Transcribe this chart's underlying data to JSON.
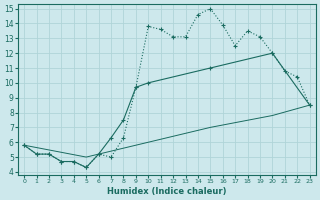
{
  "xlabel": "Humidex (Indice chaleur)",
  "bg_color": "#cde8ec",
  "grid_color": "#b0d4d8",
  "line_color": "#1a6b60",
  "xlim": [
    -0.5,
    23.5
  ],
  "ylim": [
    3.8,
    15.3
  ],
  "xticks": [
    0,
    1,
    2,
    3,
    4,
    5,
    6,
    7,
    8,
    9,
    10,
    11,
    12,
    13,
    14,
    15,
    16,
    17,
    18,
    19,
    20,
    21,
    22,
    23
  ],
  "yticks": [
    4,
    5,
    6,
    7,
    8,
    9,
    10,
    11,
    12,
    13,
    14,
    15
  ],
  "line1_x": [
    0,
    1,
    2,
    3,
    4,
    5,
    6,
    7,
    8,
    9,
    10,
    11,
    12,
    13,
    14,
    15,
    16,
    17,
    18,
    19,
    20,
    21,
    22,
    23
  ],
  "line1_y": [
    5.8,
    5.2,
    5.2,
    4.7,
    4.7,
    4.3,
    5.2,
    5.0,
    6.3,
    9.7,
    13.8,
    13.6,
    13.1,
    13.1,
    14.6,
    15.0,
    13.9,
    12.5,
    13.5,
    13.1,
    12.0,
    10.8,
    10.4,
    8.5
  ],
  "line2_x": [
    0,
    1,
    2,
    3,
    4,
    5,
    6,
    7,
    8,
    9,
    10,
    15,
    20,
    23
  ],
  "line2_y": [
    5.8,
    5.2,
    5.2,
    4.7,
    4.7,
    4.3,
    5.2,
    6.3,
    7.5,
    9.7,
    10.0,
    11.0,
    12.0,
    8.5
  ],
  "line3_x": [
    0,
    5,
    10,
    15,
    20,
    23
  ],
  "line3_y": [
    5.8,
    5.0,
    6.0,
    7.0,
    7.8,
    8.5
  ]
}
